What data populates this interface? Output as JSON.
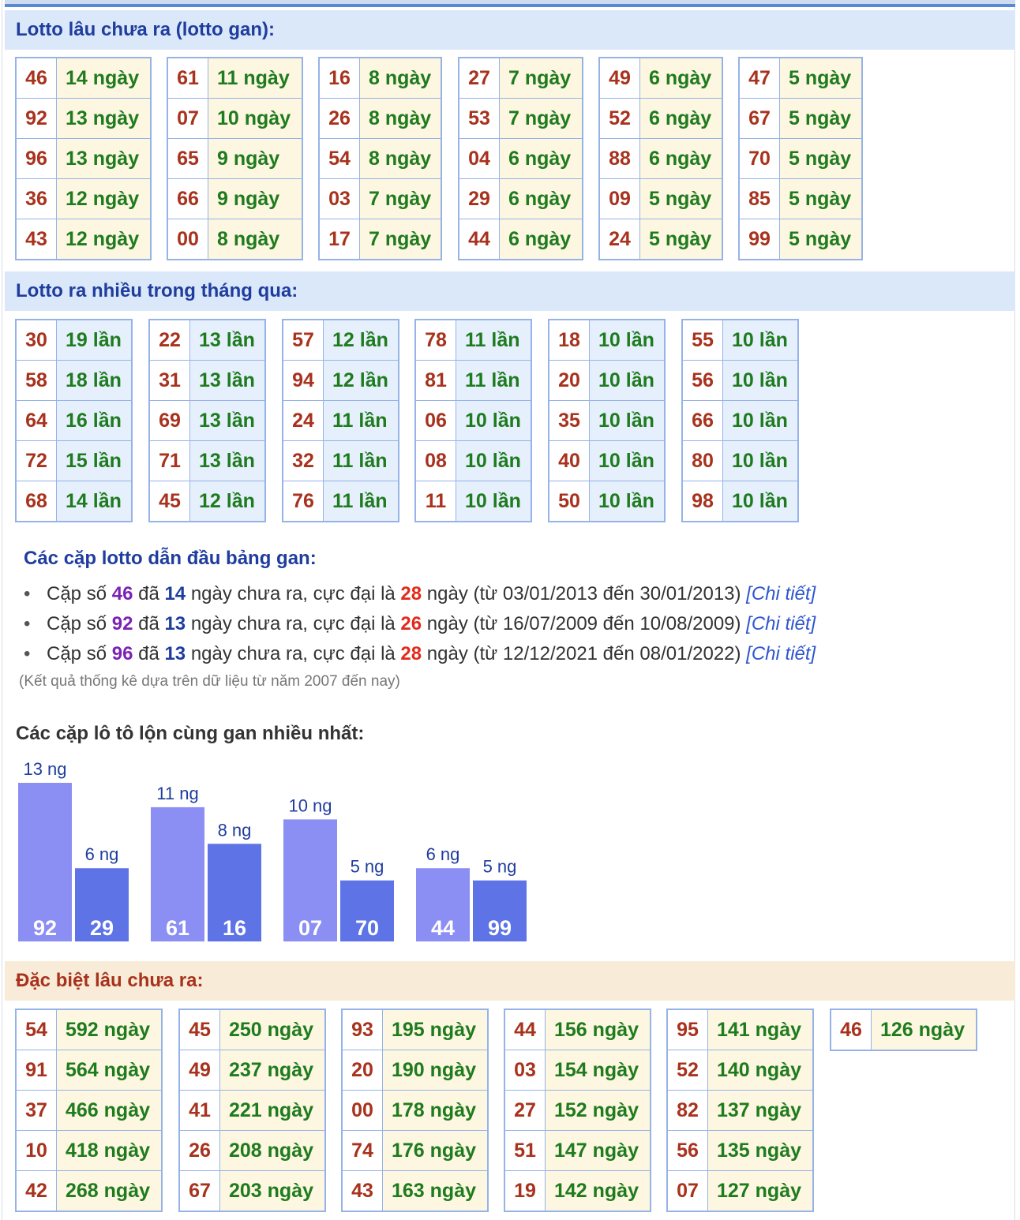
{
  "sections": {
    "gan_title": "Lotto lâu chưa ra (lotto gan):",
    "frequent_title": "Lotto ra nhiều trong tháng qua:",
    "special_title": "Đặc biệt lâu chưa ra:"
  },
  "lotto_gan": [
    [
      [
        "46",
        "14 ngày"
      ],
      [
        "92",
        "13 ngày"
      ],
      [
        "96",
        "13 ngày"
      ],
      [
        "36",
        "12 ngày"
      ],
      [
        "43",
        "12 ngày"
      ]
    ],
    [
      [
        "61",
        "11 ngày"
      ],
      [
        "07",
        "10 ngày"
      ],
      [
        "65",
        "9 ngày"
      ],
      [
        "66",
        "9 ngày"
      ],
      [
        "00",
        "8 ngày"
      ]
    ],
    [
      [
        "16",
        "8 ngày"
      ],
      [
        "26",
        "8 ngày"
      ],
      [
        "54",
        "8 ngày"
      ],
      [
        "03",
        "7 ngày"
      ],
      [
        "17",
        "7 ngày"
      ]
    ],
    [
      [
        "27",
        "7 ngày"
      ],
      [
        "53",
        "7 ngày"
      ],
      [
        "04",
        "6 ngày"
      ],
      [
        "29",
        "6 ngày"
      ],
      [
        "44",
        "6 ngày"
      ]
    ],
    [
      [
        "49",
        "6 ngày"
      ],
      [
        "52",
        "6 ngày"
      ],
      [
        "88",
        "6 ngày"
      ],
      [
        "09",
        "5 ngày"
      ],
      [
        "24",
        "5 ngày"
      ]
    ],
    [
      [
        "47",
        "5 ngày"
      ],
      [
        "67",
        "5 ngày"
      ],
      [
        "70",
        "5 ngày"
      ],
      [
        "85",
        "5 ngày"
      ],
      [
        "99",
        "5 ngày"
      ]
    ]
  ],
  "lotto_frequent": [
    [
      [
        "30",
        "19 lần"
      ],
      [
        "58",
        "18 lần"
      ],
      [
        "64",
        "16 lần"
      ],
      [
        "72",
        "15 lần"
      ],
      [
        "68",
        "14 lần"
      ]
    ],
    [
      [
        "22",
        "13 lần"
      ],
      [
        "31",
        "13 lần"
      ],
      [
        "69",
        "13 lần"
      ],
      [
        "71",
        "13 lần"
      ],
      [
        "45",
        "12 lần"
      ]
    ],
    [
      [
        "57",
        "12 lần"
      ],
      [
        "94",
        "12 lần"
      ],
      [
        "24",
        "11 lần"
      ],
      [
        "32",
        "11 lần"
      ],
      [
        "76",
        "11 lần"
      ]
    ],
    [
      [
        "78",
        "11 lần"
      ],
      [
        "81",
        "11 lần"
      ],
      [
        "06",
        "10 lần"
      ],
      [
        "08",
        "10 lần"
      ],
      [
        "11",
        "10 lần"
      ]
    ],
    [
      [
        "18",
        "10 lần"
      ],
      [
        "20",
        "10 lần"
      ],
      [
        "35",
        "10 lần"
      ],
      [
        "40",
        "10 lần"
      ],
      [
        "50",
        "10 lần"
      ]
    ],
    [
      [
        "55",
        "10 lần"
      ],
      [
        "56",
        "10 lần"
      ],
      [
        "66",
        "10 lần"
      ],
      [
        "80",
        "10 lần"
      ],
      [
        "98",
        "10 lần"
      ]
    ]
  ],
  "lead_pairs": {
    "title": "Các cặp lotto dẫn đầu bảng gan:",
    "items": [
      {
        "pre": "Cặp số ",
        "num": "46",
        "mid1": " đã ",
        "days": "14",
        "mid2": " ngày chưa ra, cực đại là ",
        "max": "28",
        "post": " ngày (từ 03/01/2013 đến 30/01/2013) ",
        "link": "[Chi tiết]"
      },
      {
        "pre": "Cặp số ",
        "num": "92",
        "mid1": " đã ",
        "days": "13",
        "mid2": " ngày chưa ra, cực đại là ",
        "max": "26",
        "post": " ngày (từ 16/07/2009 đến 10/08/2009) ",
        "link": "[Chi tiết]"
      },
      {
        "pre": "Cặp số ",
        "num": "96",
        "mid1": " đã ",
        "days": "13",
        "mid2": " ngày chưa ra, cực đại là ",
        "max": "28",
        "post": " ngày (từ 12/12/2021 đến 08/01/2022) ",
        "link": "[Chi tiết]"
      }
    ],
    "note": "(Kết quả thống kê dựa trên dữ liệu từ năm 2007 đến nay)"
  },
  "pair_chart_title": "Các cặp lô tô lộn cùng gan nhiều nhất:",
  "chart_data": {
    "type": "bar",
    "title": "Các cặp lô tô lộn cùng gan nhiều nhất:",
    "unit_suffix": " ng",
    "ylim": [
      0,
      13
    ],
    "groups": [
      [
        {
          "label": "92",
          "value": 13
        },
        {
          "label": "29",
          "value": 6
        }
      ],
      [
        {
          "label": "61",
          "value": 11
        },
        {
          "label": "16",
          "value": 8
        }
      ],
      [
        {
          "label": "07",
          "value": 10
        },
        {
          "label": "70",
          "value": 5
        }
      ],
      [
        {
          "label": "44",
          "value": 6
        },
        {
          "label": "99",
          "value": 5
        }
      ]
    ],
    "colors": {
      "first": "#8b8ef2",
      "second": "#5d73e6"
    }
  },
  "special_gan": [
    [
      [
        "54",
        "592 ngày"
      ],
      [
        "91",
        "564 ngày"
      ],
      [
        "37",
        "466 ngày"
      ],
      [
        "10",
        "418 ngày"
      ],
      [
        "42",
        "268 ngày"
      ]
    ],
    [
      [
        "45",
        "250 ngày"
      ],
      [
        "49",
        "237 ngày"
      ],
      [
        "41",
        "221 ngày"
      ],
      [
        "26",
        "208 ngày"
      ],
      [
        "67",
        "203 ngày"
      ]
    ],
    [
      [
        "93",
        "195 ngày"
      ],
      [
        "20",
        "190 ngày"
      ],
      [
        "00",
        "178 ngày"
      ],
      [
        "74",
        "176 ngày"
      ],
      [
        "43",
        "163 ngày"
      ]
    ],
    [
      [
        "44",
        "156 ngày"
      ],
      [
        "03",
        "154 ngày"
      ],
      [
        "27",
        "152 ngày"
      ],
      [
        "51",
        "147 ngày"
      ],
      [
        "19",
        "142 ngày"
      ]
    ],
    [
      [
        "95",
        "141 ngày"
      ],
      [
        "52",
        "140 ngày"
      ],
      [
        "82",
        "137 ngày"
      ],
      [
        "56",
        "135 ngày"
      ],
      [
        "07",
        "127 ngày"
      ]
    ],
    [
      [
        "46",
        "126 ngày"
      ]
    ]
  ],
  "colors": {
    "header_blue_bg": "#dbe8fa",
    "header_beige_bg": "#f8ecd8",
    "number_red": "#a8321d",
    "value_green": "#1e7b1e",
    "cell_border": "#96b3e8"
  }
}
